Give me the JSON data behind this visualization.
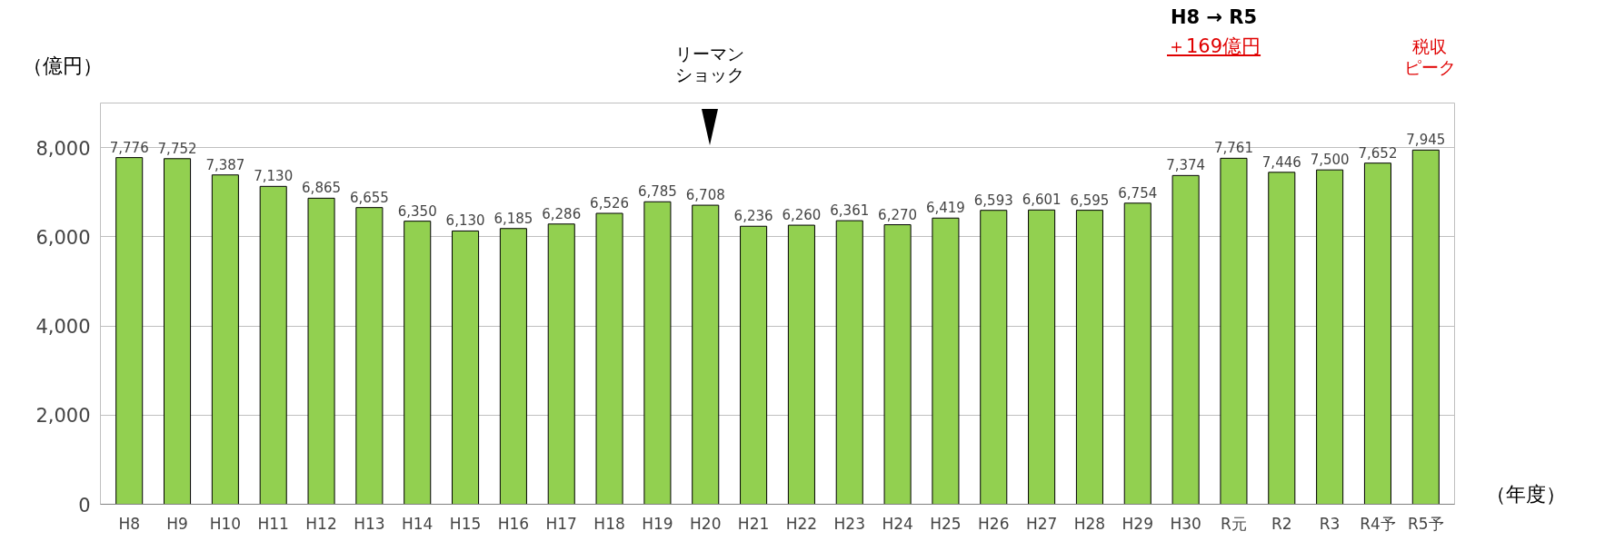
{
  "chart_data": {
    "type": "bar",
    "ylabel": "（億円）",
    "xlabel": "（年度）",
    "categories": [
      "H8",
      "H9",
      "H10",
      "H11",
      "H12",
      "H13",
      "H14",
      "H15",
      "H16",
      "H17",
      "H18",
      "H19",
      "H20",
      "H21",
      "H22",
      "H23",
      "H24",
      "H25",
      "H26",
      "H27",
      "H28",
      "H29",
      "H30",
      "R元",
      "R2",
      "R3",
      "R4予",
      "R5予"
    ],
    "values": [
      7776,
      7752,
      7387,
      7130,
      6865,
      6655,
      6350,
      6130,
      6185,
      6286,
      6526,
      6785,
      6708,
      6236,
      6260,
      6361,
      6270,
      6419,
      6593,
      6601,
      6595,
      6754,
      7374,
      7761,
      7446,
      7500,
      7652,
      7945
    ],
    "value_labels": [
      "7,776",
      "7,752",
      "7,387",
      "7,130",
      "6,865",
      "6,655",
      "6,350",
      "6,130",
      "6,185",
      "6,286",
      "6,526",
      "6,785",
      "6,708",
      "6,236",
      "6,260",
      "6,361",
      "6,270",
      "6,419",
      "6,593",
      "6,601",
      "6,595",
      "6,754",
      "7,374",
      "7,761",
      "7,446",
      "7,500",
      "7,652",
      "7,945"
    ],
    "color": "#92d050",
    "ylim": [
      0,
      9000
    ],
    "yticks": [
      0,
      {
        "value": 2000,
        "label": "2,000"
      },
      {
        "value": 4000,
        "label": "4,000"
      },
      {
        "value": 6000,
        "label": "6,000"
      },
      {
        "value": 8000,
        "label": "8,000"
      }
    ],
    "grid": "y",
    "annotations": [
      "リーマンショック",
      "税収ピーク",
      "H8 → R5",
      "＋169億円"
    ]
  }
}
